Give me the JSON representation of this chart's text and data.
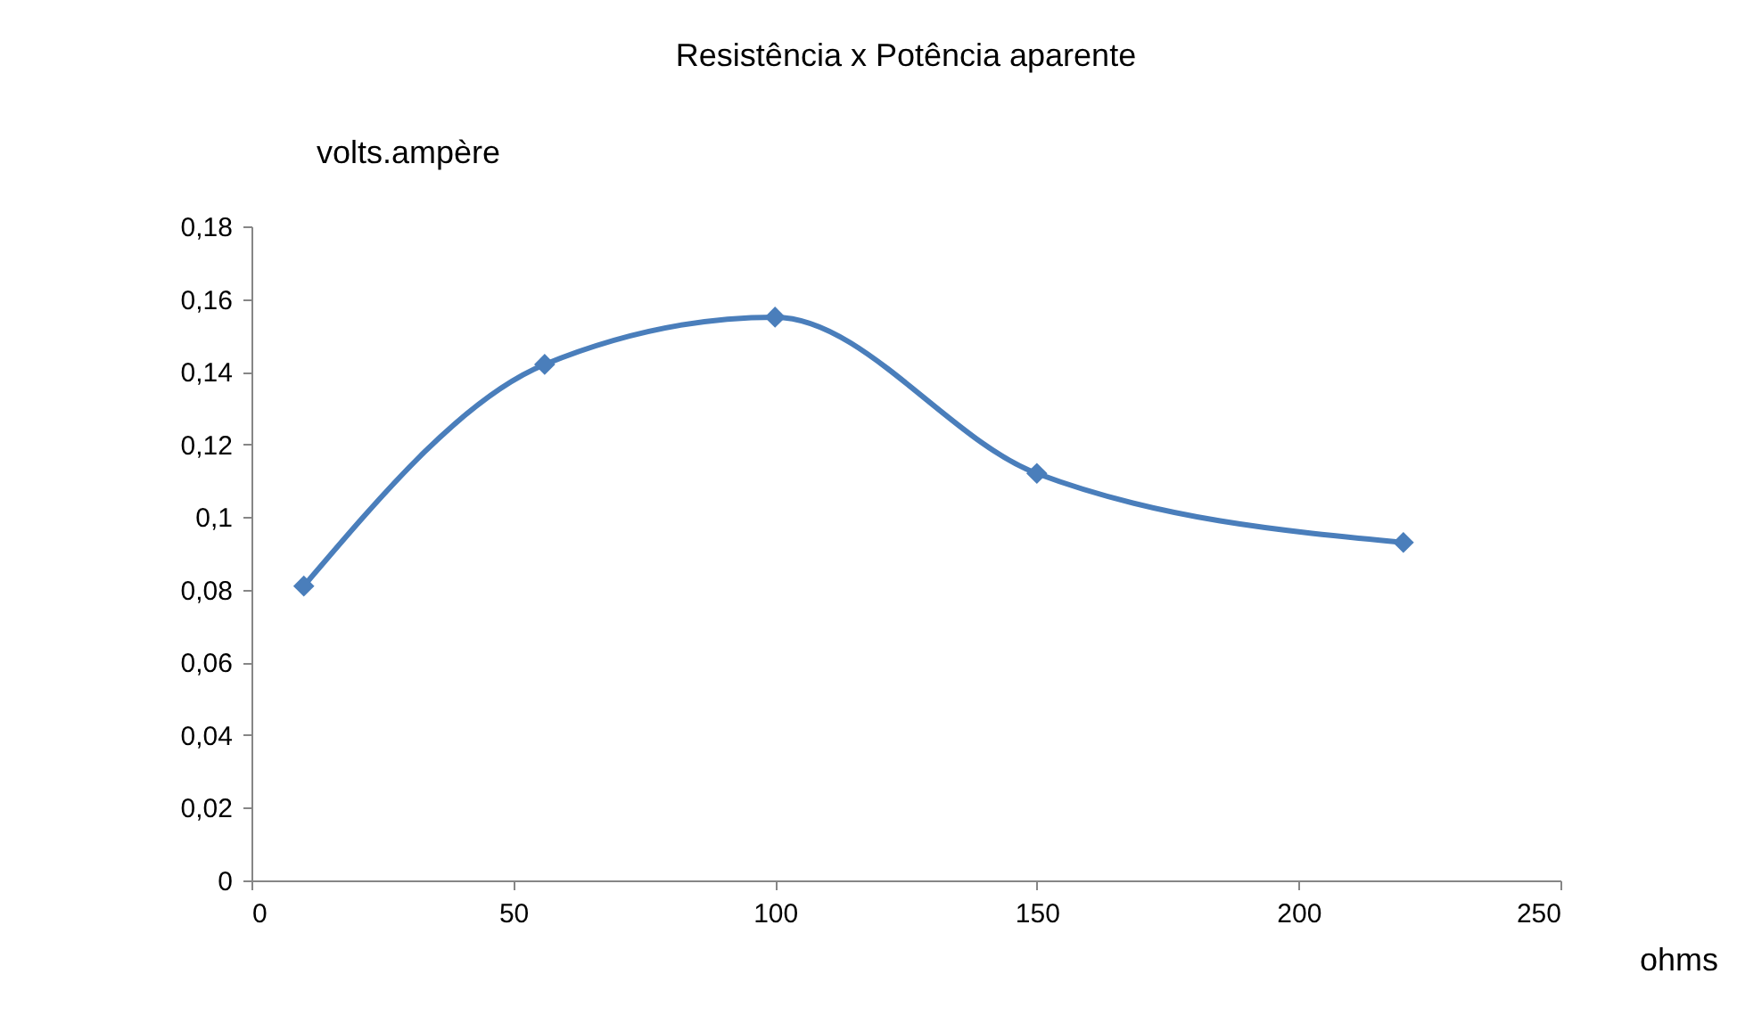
{
  "chart_data": {
    "type": "line",
    "title": "Resistência x Potência aparente",
    "xlabel": "ohms",
    "ylabel": "volts.ampère",
    "x": [
      10,
      56,
      100,
      150,
      220
    ],
    "series": [
      {
        "color": "#4a7ebb",
        "values": [
          0.081,
          0.142,
          0.155,
          0.112,
          0.093
        ]
      }
    ],
    "xlim": [
      0,
      250
    ],
    "xticks": [
      0,
      50,
      100,
      150,
      200,
      250
    ],
    "ylim": [
      0,
      0.18
    ],
    "yticks": [
      {
        "value": 0,
        "label": "0"
      },
      {
        "value": 0.02,
        "label": "0,02"
      },
      {
        "value": 0.04,
        "label": "0,04"
      },
      {
        "value": 0.06,
        "label": "0,06"
      },
      {
        "value": 0.08,
        "label": "0,08"
      },
      {
        "value": 0.1,
        "label": "0,1"
      },
      {
        "value": 0.12,
        "label": "0,12"
      },
      {
        "value": 0.14,
        "label": "0,14"
      },
      {
        "value": 0.16,
        "label": "0,16"
      },
      {
        "value": 0.18,
        "label": "0,18"
      }
    ],
    "marker": "diamond",
    "line_style": "solid"
  }
}
